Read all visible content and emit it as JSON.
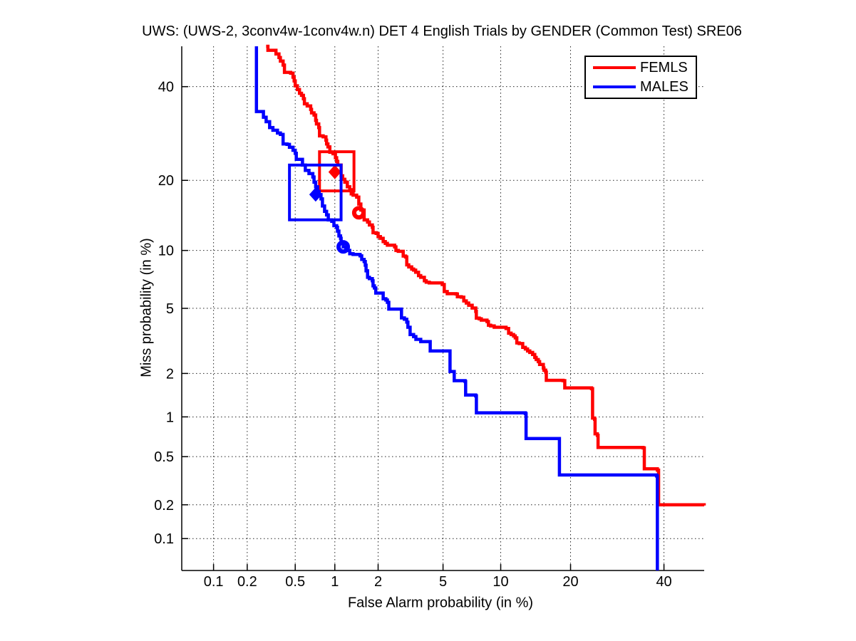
{
  "chart_data": {
    "type": "line",
    "variant": "DET curve (normal-deviate / probit axes, log-style tick labels)",
    "title": "UWS: (UWS-2, 3conv4w-1conv4w.n) DET 4 English Trials by GENDER (Common Test) SRE06",
    "axes": {
      "xlabel": "False Alarm probability (in %)",
      "ylabel": "Miss probability (in %)",
      "xticks": [
        0.1,
        0.2,
        0.5,
        1,
        2,
        5,
        10,
        20,
        40
      ],
      "yticks": [
        0.1,
        0.2,
        0.5,
        1,
        2,
        5,
        10,
        20,
        40
      ],
      "xlim": [
        0.05,
        50
      ],
      "ylim": [
        0.05,
        50
      ],
      "grid": "dotted-black"
    },
    "legend": {
      "position": "top-right"
    },
    "series": [
      {
        "name": "FEMLS",
        "color": "#ff0000",
        "diamond_marker": [
          1.0,
          21.5
        ],
        "circle_marker": [
          1.48,
          14.8
        ],
        "box": {
          "fa": [
            0.77,
            1.37
          ],
          "miss": [
            18.2,
            25.4
          ]
        },
        "points": [
          [
            0.29,
            50
          ],
          [
            0.3,
            49.0
          ],
          [
            0.35,
            48.1
          ],
          [
            0.37,
            47.2
          ],
          [
            0.38,
            46.3
          ],
          [
            0.4,
            45.3
          ],
          [
            0.41,
            43.5
          ],
          [
            0.46,
            43.3
          ],
          [
            0.48,
            42.3
          ],
          [
            0.49,
            41.4
          ],
          [
            0.5,
            40.2
          ],
          [
            0.52,
            39.3
          ],
          [
            0.54,
            38.4
          ],
          [
            0.56,
            37.9
          ],
          [
            0.58,
            37.1
          ],
          [
            0.59,
            35.9
          ],
          [
            0.62,
            35.4
          ],
          [
            0.66,
            34.6
          ],
          [
            0.67,
            33.8
          ],
          [
            0.7,
            33.3
          ],
          [
            0.72,
            32.1
          ],
          [
            0.73,
            31.3
          ],
          [
            0.76,
            30.5
          ],
          [
            0.77,
            28.7
          ],
          [
            0.82,
            28.5
          ],
          [
            0.86,
            27.8
          ],
          [
            0.87,
            27.0
          ],
          [
            0.89,
            26.4
          ],
          [
            0.92,
            25.3
          ],
          [
            0.97,
            25.0
          ],
          [
            1.01,
            24.2
          ],
          [
            1.03,
            23.5
          ],
          [
            1.05,
            22.8
          ],
          [
            1.11,
            20.8
          ],
          [
            1.14,
            20.2
          ],
          [
            1.18,
            19.7
          ],
          [
            1.23,
            18.9
          ],
          [
            1.28,
            18.4
          ],
          [
            1.31,
            17.7
          ],
          [
            1.35,
            17.5
          ],
          [
            1.43,
            17.2
          ],
          [
            1.48,
            16.1
          ],
          [
            1.53,
            15.2
          ],
          [
            1.61,
            13.8
          ],
          [
            1.7,
            13.5
          ],
          [
            1.75,
            13.1
          ],
          [
            1.83,
            12.8
          ],
          [
            1.85,
            12.1
          ],
          [
            1.94,
            12.0
          ],
          [
            2.0,
            11.6
          ],
          [
            2.07,
            11.4
          ],
          [
            2.16,
            11.0
          ],
          [
            2.23,
            10.8
          ],
          [
            2.3,
            10.6
          ],
          [
            2.56,
            10.4
          ],
          [
            2.61,
            10.0
          ],
          [
            2.7,
            9.9
          ],
          [
            2.9,
            9.8
          ],
          [
            2.9,
            9.4
          ],
          [
            3.0,
            9.3
          ],
          [
            3.05,
            8.5
          ],
          [
            3.14,
            8.3
          ],
          [
            3.27,
            8.1
          ],
          [
            3.36,
            8.0
          ],
          [
            3.46,
            7.8
          ],
          [
            3.6,
            7.5
          ],
          [
            3.71,
            7.35
          ],
          [
            3.9,
            7.05
          ],
          [
            4.0,
            6.93
          ],
          [
            4.17,
            6.87
          ],
          [
            4.95,
            6.74
          ],
          [
            5.08,
            6.18
          ],
          [
            5.28,
            6.02
          ],
          [
            5.9,
            6.0
          ],
          [
            6.0,
            5.8
          ],
          [
            6.3,
            5.76
          ],
          [
            6.5,
            5.5
          ],
          [
            6.7,
            5.35
          ],
          [
            6.9,
            5.2
          ],
          [
            7.2,
            5.02
          ],
          [
            7.51,
            4.8
          ],
          [
            7.56,
            4.4
          ],
          [
            7.83,
            4.36
          ],
          [
            8.02,
            4.28
          ],
          [
            8.57,
            4.2
          ],
          [
            8.71,
            4.0
          ],
          [
            8.93,
            3.96
          ],
          [
            9.3,
            3.89
          ],
          [
            10.6,
            3.82
          ],
          [
            10.9,
            3.59
          ],
          [
            11.2,
            3.52
          ],
          [
            11.5,
            3.45
          ],
          [
            11.7,
            3.36
          ],
          [
            11.9,
            3.13
          ],
          [
            12.2,
            3.1
          ],
          [
            12.65,
            2.94
          ],
          [
            13.0,
            2.87
          ],
          [
            13.3,
            2.79
          ],
          [
            13.6,
            2.73
          ],
          [
            14.0,
            2.65
          ],
          [
            14.3,
            2.54
          ],
          [
            14.5,
            2.46
          ],
          [
            14.8,
            2.39
          ],
          [
            15.0,
            2.29
          ],
          [
            15.55,
            2.17
          ],
          [
            15.65,
            2.1
          ],
          [
            15.9,
            2.04
          ],
          [
            16.0,
            1.8
          ],
          [
            18.7,
            1.79
          ],
          [
            19.0,
            1.6
          ],
          [
            23.9,
            1.58
          ],
          [
            24.1,
            0.98
          ],
          [
            24.5,
            0.96
          ],
          [
            24.6,
            0.75
          ],
          [
            25.05,
            0.73
          ],
          [
            25.2,
            0.59
          ],
          [
            35.0,
            0.585
          ],
          [
            35.3,
            0.4
          ],
          [
            38.4,
            0.39
          ],
          [
            38.7,
            0.2
          ],
          [
            50,
            0.197
          ]
        ]
      },
      {
        "name": "MALES",
        "color": "#0000ff",
        "diamond_marker": [
          0.72,
          17.6
        ],
        "circle_marker": [
          1.15,
          10.4
        ],
        "box": {
          "fa": [
            0.45,
            1.11
          ],
          "miss": [
            13.8,
            22.8
          ]
        },
        "points": [
          [
            0.24,
            50
          ],
          [
            0.24,
            34.1
          ],
          [
            0.275,
            33.9
          ],
          [
            0.275,
            32.8
          ],
          [
            0.29,
            32.8
          ],
          [
            0.29,
            31.8
          ],
          [
            0.31,
            31.7
          ],
          [
            0.31,
            30.5
          ],
          [
            0.33,
            29.9
          ],
          [
            0.36,
            29.3
          ],
          [
            0.38,
            29.0
          ],
          [
            0.4,
            28.7
          ],
          [
            0.4,
            27.0
          ],
          [
            0.43,
            26.9
          ],
          [
            0.45,
            26.3
          ],
          [
            0.48,
            25.7
          ],
          [
            0.5,
            25.1
          ],
          [
            0.51,
            23.9
          ],
          [
            0.57,
            23.7
          ],
          [
            0.57,
            22.8
          ],
          [
            0.6,
            21.8
          ],
          [
            0.64,
            21.2
          ],
          [
            0.685,
            20.6
          ],
          [
            0.7,
            19.7
          ],
          [
            0.72,
            18.9
          ],
          [
            0.745,
            18.1
          ],
          [
            0.765,
            17.6
          ],
          [
            0.79,
            16.9
          ],
          [
            0.81,
            15.8
          ],
          [
            0.84,
            15.0
          ],
          [
            0.87,
            14.5
          ],
          [
            0.895,
            13.8
          ],
          [
            0.95,
            13.6
          ],
          [
            0.985,
            13.0
          ],
          [
            1.03,
            12.8
          ],
          [
            1.045,
            12.3
          ],
          [
            1.07,
            11.7
          ],
          [
            1.1,
            11.4
          ],
          [
            1.11,
            10.85
          ],
          [
            1.15,
            10.4
          ],
          [
            1.2,
            10.0
          ],
          [
            1.28,
            9.65
          ],
          [
            1.35,
            9.56
          ],
          [
            1.51,
            9.41
          ],
          [
            1.55,
            9.04
          ],
          [
            1.61,
            8.83
          ],
          [
            1.64,
            8.47
          ],
          [
            1.66,
            7.93
          ],
          [
            1.7,
            7.35
          ],
          [
            1.75,
            7.23
          ],
          [
            1.83,
            7.05
          ],
          [
            1.85,
            6.63
          ],
          [
            1.89,
            6.46
          ],
          [
            1.93,
            6.07
          ],
          [
            2.16,
            6.02
          ],
          [
            2.16,
            5.65
          ],
          [
            2.25,
            5.56
          ],
          [
            2.3,
            5.4
          ],
          [
            2.35,
            4.95
          ],
          [
            2.83,
            4.9
          ],
          [
            2.83,
            4.41
          ],
          [
            2.95,
            4.33
          ],
          [
            3.05,
            4.17
          ],
          [
            3.1,
            3.89
          ],
          [
            3.2,
            3.52
          ],
          [
            3.36,
            3.42
          ],
          [
            3.47,
            3.29
          ],
          [
            3.71,
            3.19
          ],
          [
            4.22,
            3.16
          ],
          [
            4.22,
            2.79
          ],
          [
            5.42,
            2.79
          ],
          [
            5.47,
            2.06
          ],
          [
            5.77,
            2.04
          ],
          [
            5.77,
            1.79
          ],
          [
            6.6,
            1.77
          ],
          [
            6.65,
            1.43
          ],
          [
            7.5,
            1.41
          ],
          [
            7.57,
            1.07
          ],
          [
            13.0,
            1.055
          ],
          [
            13.1,
            0.69
          ],
          [
            17.9,
            0.69
          ],
          [
            18.1,
            0.356
          ],
          [
            38.2,
            0.35
          ],
          [
            38.4,
            0.05
          ]
        ]
      }
    ]
  }
}
